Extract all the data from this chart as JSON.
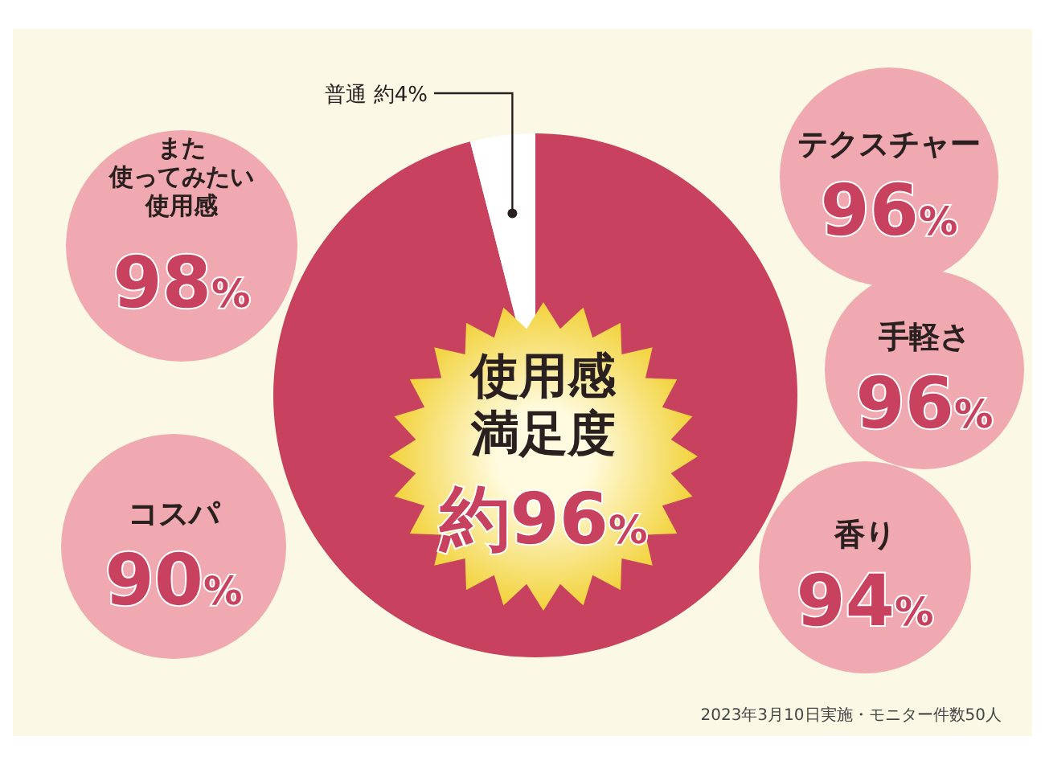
{
  "chart_data": [
    {
      "type": "pie",
      "categories": [
        "使用感満足度",
        "普通"
      ],
      "values": [
        96,
        4
      ],
      "colors": [
        "#c8415e",
        "#ffffff"
      ],
      "value_labels": [
        "約96%",
        "約4%"
      ],
      "annotations": [
        "2023年3月10日実施・モニター件数50人"
      ]
    },
    {
      "type": "other",
      "categories": [
        "また使ってみたい使用感",
        "コスパ",
        "テクスチャー",
        "手軽さ",
        "香り"
      ],
      "values": [
        98,
        90,
        96,
        96,
        94
      ],
      "value_labels": [
        "98%",
        "90%",
        "96%",
        "96%",
        "94%"
      ],
      "color": "#f0a9b0"
    }
  ]
}
